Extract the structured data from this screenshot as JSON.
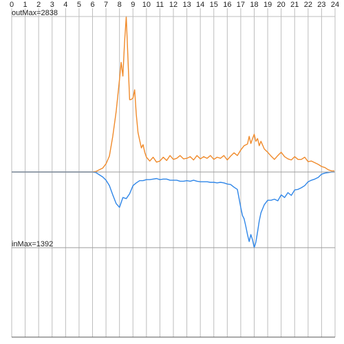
{
  "chart_data": {
    "type": "line",
    "title": "",
    "xlabel": "",
    "ylabel": "",
    "xlim": [
      0,
      24
    ],
    "x_ticks": [
      0,
      1,
      2,
      3,
      4,
      5,
      6,
      7,
      8,
      9,
      10,
      11,
      12,
      13,
      14,
      15,
      16,
      17,
      18,
      19,
      20,
      21,
      22,
      23,
      24
    ],
    "x_tick_labels": [
      "0",
      "1",
      "2",
      "3",
      "4",
      "5",
      "6",
      "7",
      "8",
      "9",
      "10",
      "11",
      "12",
      "13",
      "14",
      "15",
      "16",
      "17",
      "18",
      "19",
      "20",
      "21",
      "22",
      "23",
      "24"
    ],
    "grid": true,
    "annotations": {
      "out_max_label": "outMax=2838",
      "in_max_label": "inMax=1392"
    },
    "out_max": 2838,
    "in_max": 1392,
    "colors": {
      "out": "#f08a2a",
      "in": "#2f86e8",
      "grid": "#bdbdbd",
      "baseline": "#9b9b9b",
      "text": "#222222"
    },
    "series": [
      {
        "key": "out",
        "direction": "up",
        "x": [
          0,
          6.0,
          6.25,
          6.5,
          6.75,
          7.0,
          7.25,
          7.5,
          7.75,
          8.0,
          8.125,
          8.25,
          8.375,
          8.5,
          8.625,
          8.75,
          8.875,
          9.0,
          9.125,
          9.25,
          9.375,
          9.5,
          9.625,
          9.75,
          9.875,
          10.0,
          10.25,
          10.5,
          10.75,
          11.0,
          11.25,
          11.5,
          11.75,
          12.0,
          12.25,
          12.5,
          12.75,
          13.0,
          13.25,
          13.5,
          13.75,
          14.0,
          14.25,
          14.5,
          14.75,
          15.0,
          15.25,
          15.5,
          15.75,
          16.0,
          16.25,
          16.5,
          16.75,
          17.0,
          17.25,
          17.5,
          17.625,
          17.75,
          17.875,
          18.0,
          18.125,
          18.25,
          18.375,
          18.5,
          18.75,
          19.0,
          19.25,
          19.5,
          19.75,
          20.0,
          20.25,
          20.5,
          20.75,
          21.0,
          21.25,
          21.5,
          21.75,
          22.0,
          22.25,
          22.5,
          22.75,
          23.0,
          23.25,
          23.5,
          23.75
        ],
        "values": [
          0,
          0,
          10,
          40,
          70,
          150,
          290,
          650,
          1100,
          1690,
          2000,
          1750,
          2360,
          2838,
          2100,
          1320,
          1325,
          1350,
          1500,
          1050,
          720,
          580,
          440,
          500,
          360,
          270,
          200,
          270,
          180,
          200,
          270,
          210,
          300,
          230,
          250,
          300,
          240,
          250,
          280,
          220,
          300,
          240,
          280,
          250,
          300,
          230,
          270,
          250,
          300,
          220,
          290,
          350,
          300,
          400,
          480,
          510,
          650,
          520,
          610,
          690,
          560,
          610,
          480,
          560,
          420,
          360,
          290,
          230,
          300,
          360,
          280,
          240,
          220,
          280,
          230,
          230,
          270,
          190,
          200,
          170,
          140,
          100,
          80,
          40,
          20
        ]
      },
      {
        "key": "in",
        "direction": "down",
        "x": [
          0,
          6.0,
          6.25,
          6.5,
          6.75,
          7.0,
          7.25,
          7.5,
          7.75,
          8.0,
          8.25,
          8.5,
          8.75,
          9.0,
          9.25,
          9.5,
          9.75,
          10.0,
          10.25,
          10.5,
          10.75,
          11.0,
          11.25,
          11.5,
          11.75,
          12.0,
          12.25,
          12.5,
          12.75,
          13.0,
          13.25,
          13.5,
          13.75,
          14.0,
          14.25,
          14.5,
          14.75,
          15.0,
          15.25,
          15.5,
          15.75,
          16.0,
          16.25,
          16.5,
          16.75,
          17.0,
          17.125,
          17.25,
          17.375,
          17.5,
          17.625,
          17.75,
          17.875,
          18.0,
          18.125,
          18.25,
          18.375,
          18.5,
          18.75,
          19.0,
          19.25,
          19.5,
          19.75,
          20.0,
          20.25,
          20.5,
          20.75,
          21.0,
          21.25,
          21.5,
          21.75,
          22.0,
          22.25,
          22.5,
          22.75,
          23.0,
          23.25,
          23.5,
          23.75
        ],
        "values": [
          0,
          0,
          10,
          50,
          90,
          150,
          250,
          420,
          580,
          650,
          470,
          490,
          400,
          250,
          200,
          160,
          160,
          140,
          140,
          130,
          120,
          140,
          130,
          130,
          150,
          150,
          150,
          170,
          170,
          160,
          170,
          150,
          170,
          180,
          180,
          180,
          190,
          190,
          200,
          190,
          200,
          220,
          230,
          280,
          320,
          650,
          800,
          860,
          1000,
          1150,
          1280,
          1150,
          1250,
          1392,
          1290,
          1100,
          900,
          750,
          600,
          520,
          520,
          500,
          530,
          420,
          470,
          380,
          430,
          330,
          320,
          290,
          250,
          180,
          150,
          130,
          100,
          40,
          20,
          10,
          0
        ]
      }
    ]
  }
}
